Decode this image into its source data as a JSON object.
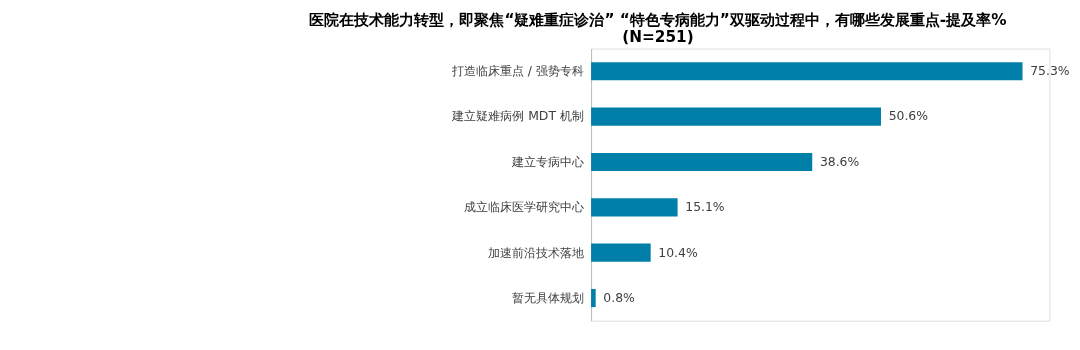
{
  "chart_data": {
    "type": "bar",
    "orientation": "horizontal",
    "title": "医院在技术能力转型，即聚焦“疑难重症诊治” “特色专病能力”双驱动过程中，有哪些发展重点-提及率%",
    "subtitle": "(N=251)",
    "categories": [
      "打造临床重点 / 强势专科",
      "建立疑难病例 MDT 机制",
      "建立专病中心",
      "成立临床医学研究中心",
      "加速前沿技术落地",
      "暂无具体规划"
    ],
    "values": [
      75.3,
      50.6,
      38.6,
      15.1,
      10.4,
      0.8
    ],
    "value_labels": [
      "75.3%",
      "50.6%",
      "38.6%",
      "15.1%",
      "10.4%",
      "0.8%"
    ],
    "color": "#0080a8"
  }
}
